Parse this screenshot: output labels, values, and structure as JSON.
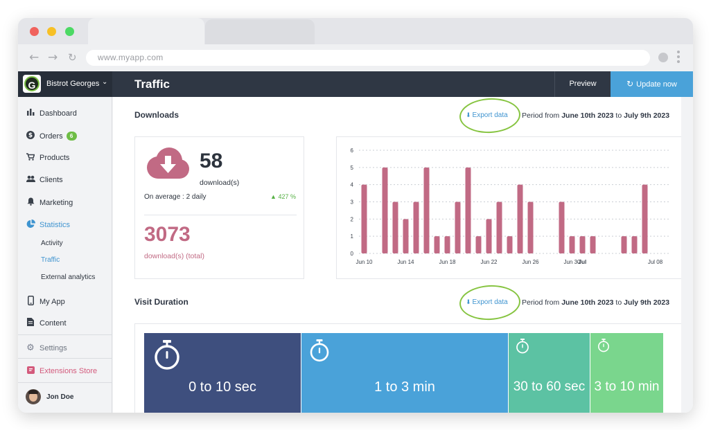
{
  "browser": {
    "url": "www.myapp.com",
    "nav_icons": [
      "back-arrow-icon",
      "forward-arrow-icon",
      "reload-icon"
    ]
  },
  "header": {
    "brand_initial": "G",
    "brand_name": "Bistrot Georges",
    "page_title": "Traffic",
    "preview_label": "Preview",
    "update_label": "Update now",
    "colors": {
      "bar": "#2f3744",
      "accent": "#4aa2d9"
    }
  },
  "sidebar": {
    "items": [
      {
        "label": "Dashboard",
        "icon": "bar-chart-icon"
      },
      {
        "label": "Orders",
        "icon": "dollar-icon",
        "badge": "6"
      },
      {
        "label": "Products",
        "icon": "cart-icon"
      },
      {
        "label": "Clients",
        "icon": "people-icon"
      },
      {
        "label": "Marketing",
        "icon": "bell-icon"
      },
      {
        "label": "Statistics",
        "icon": "pie-chart-icon"
      }
    ],
    "sub_items": [
      {
        "label": "Activity"
      },
      {
        "label": "Traffic"
      },
      {
        "label": "External analytics"
      }
    ],
    "items2": [
      {
        "label": "My App",
        "icon": "phone-icon"
      },
      {
        "label": "Content",
        "icon": "document-icon"
      }
    ],
    "settings_label": "Settings",
    "extensions_label": "Extensions Store",
    "user_name": "Jon Doe"
  },
  "downloads": {
    "title": "Downloads",
    "export_label": "Export data",
    "period_prefix": "Period from",
    "period_start": "June 10th 2023",
    "period_to": "to",
    "period_end": "July 9th 2023",
    "count": "58",
    "count_label": "download(s)",
    "average": "On average : 2 daily",
    "growth": "427 %",
    "total": "3073",
    "total_label": "download(s) (total)",
    "colors": {
      "primary": "#c16a84",
      "growth": "#55b043"
    }
  },
  "chart_data": {
    "type": "bar",
    "x": [
      "Jun 10",
      "Jun 11",
      "Jun 12",
      "Jun 13",
      "Jun 14",
      "Jun 15",
      "Jun 16",
      "Jun 17",
      "Jun 18",
      "Jun 19",
      "Jun 20",
      "Jun 21",
      "Jun 22",
      "Jun 23",
      "Jun 24",
      "Jun 25",
      "Jun 26",
      "Jun 27",
      "Jun 28",
      "Jun 29",
      "Jun 30",
      "Jul 1",
      "Jul 2",
      "Jul 3",
      "Jul 4",
      "Jul 5",
      "Jul 6",
      "Jul 7",
      "Jul 8",
      "Jul 9"
    ],
    "values": [
      4,
      0,
      5,
      3,
      2,
      3,
      5,
      1,
      1,
      3,
      5,
      1,
      2,
      3,
      1,
      4,
      3,
      0,
      0,
      3,
      1,
      1,
      1,
      0,
      0,
      1,
      1,
      4,
      0,
      0
    ],
    "x_tick_labels": [
      "Jun 10",
      "Jun 14",
      "Jun 18",
      "Jun 22",
      "Jun 26",
      "Jun 30",
      "Jul",
      "Jul 08"
    ],
    "x_tick_index": [
      0,
      4,
      8,
      12,
      16,
      20,
      21,
      28
    ],
    "bold_tick": "Jul",
    "ylim": [
      0,
      6
    ],
    "y_ticks": [
      0,
      1,
      2,
      3,
      4,
      5,
      6
    ],
    "grid": true,
    "color": "#c16a84",
    "title": "",
    "xlabel": "",
    "ylabel": ""
  },
  "visit_duration": {
    "title": "Visit Duration",
    "export_label": "Export data",
    "period_prefix": "Period from",
    "period_start": "June 10th 2023",
    "period_to": "to",
    "period_end": "July 9th 2023",
    "blocks": [
      {
        "label": "0 to 10 sec",
        "color": "#3e4f7e"
      },
      {
        "label": "1 to 3 min",
        "color": "#4aa2d9"
      },
      {
        "label": "30 to 60 sec",
        "color": "#5cc2a3"
      },
      {
        "label": "3 to 10 min",
        "color": "#7ad68d"
      }
    ]
  }
}
